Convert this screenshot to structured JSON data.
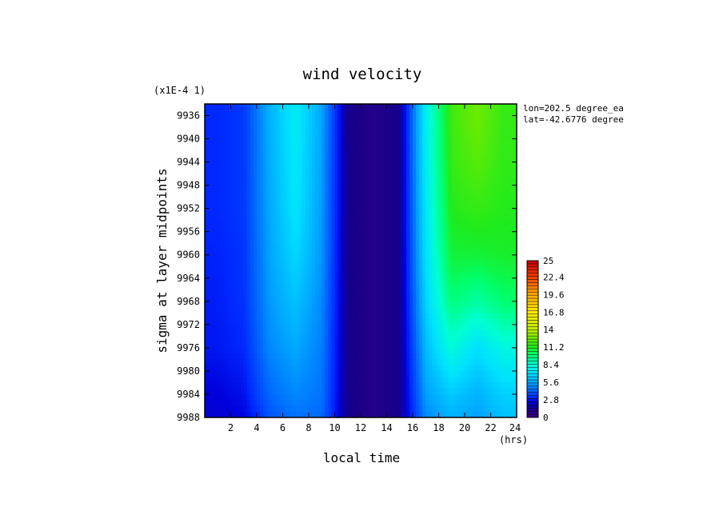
{
  "chart_data": {
    "type": "heatmap",
    "title": "wind velocity",
    "xlabel": "local time",
    "x_units": "(hrs)",
    "ylabel": "sigma at layer midpoints",
    "y_scale_note": "(x1E-4 1)",
    "annotations": [
      "lon=202.5 degree_ea",
      "lat=-42.6776 degree"
    ],
    "x_ticks": [
      "2",
      "4",
      "6",
      "8",
      "10",
      "12",
      "14",
      "16",
      "18",
      "20",
      "22",
      "24"
    ],
    "y_ticks": [
      "9936",
      "9940",
      "9944",
      "9948",
      "9952",
      "9956",
      "9960",
      "9964",
      "9968",
      "9972",
      "9976",
      "9980",
      "9984",
      "9988"
    ],
    "xlim": [
      0,
      24
    ],
    "ylim": [
      9934,
      9988
    ],
    "colorbar": {
      "min": 0,
      "max": 25,
      "tick_labels": [
        "25",
        "22.4",
        "19.6",
        "16.8",
        "14",
        "11.2",
        "8.4",
        "5.6",
        "2.8",
        "0"
      ]
    },
    "x": [
      1,
      3,
      5,
      7,
      9,
      11,
      13,
      15,
      17,
      19,
      21,
      23
    ],
    "sigma": [
      9936,
      9944,
      9952,
      9960,
      9968,
      9976,
      9984,
      9988
    ],
    "values": [
      [
        3.2,
        3.5,
        5.8,
        7.5,
        5.5,
        1.5,
        1.0,
        1.5,
        7.5,
        11.8,
        12.6,
        11.6
      ],
      [
        3.2,
        3.5,
        5.7,
        7.4,
        5.4,
        1.5,
        1.0,
        1.5,
        7.4,
        11.6,
        12.2,
        11.5
      ],
      [
        3.2,
        3.5,
        5.6,
        7.2,
        5.3,
        1.5,
        1.0,
        1.5,
        7.2,
        11.3,
        11.6,
        11.3
      ],
      [
        3.1,
        3.4,
        5.5,
        6.8,
        5.2,
        1.5,
        1.0,
        1.5,
        7.0,
        10.8,
        10.8,
        11.0
      ],
      [
        3.0,
        3.4,
        5.3,
        6.2,
        5.0,
        1.5,
        1.0,
        1.5,
        6.6,
        9.8,
        9.2,
        10.0
      ],
      [
        2.9,
        3.2,
        5.0,
        5.6,
        4.8,
        1.5,
        1.0,
        1.5,
        6.0,
        8.2,
        7.0,
        8.0
      ],
      [
        2.5,
        2.8,
        4.4,
        5.0,
        4.6,
        1.5,
        1.0,
        1.5,
        5.4,
        6.4,
        5.8,
        6.6
      ],
      [
        2.3,
        2.5,
        4.0,
        4.6,
        4.4,
        1.5,
        1.0,
        1.5,
        5.0,
        5.8,
        5.4,
        6.2
      ]
    ]
  }
}
